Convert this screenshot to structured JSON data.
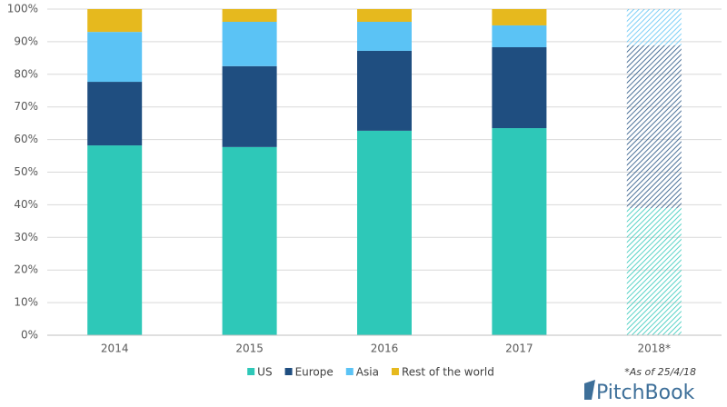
{
  "chart_data": {
    "type": "stacked_bar",
    "categories": [
      "2014",
      "2015",
      "2016",
      "2017",
      "2018*"
    ],
    "series": [
      {
        "name": "US",
        "color": "#2ec8b8",
        "values": [
          58.2,
          57.7,
          62.7,
          63.5,
          39.0
        ]
      },
      {
        "name": "Europe",
        "color": "#1f4e80",
        "values": [
          19.5,
          24.8,
          24.5,
          24.8,
          49.9
        ]
      },
      {
        "name": "Asia",
        "color": "#5bc3f5",
        "values": [
          15.3,
          13.6,
          8.9,
          6.7,
          11.1
        ]
      },
      {
        "name": "Rest of the world",
        "color": "#e6b91e",
        "values": [
          7.0,
          3.9,
          3.9,
          5.0,
          0
        ]
      }
    ],
    "hatched": [
      false,
      false,
      false,
      false,
      true
    ],
    "ylim": [
      0,
      100
    ],
    "yticks": [
      {
        "value": 0,
        "label": "0%"
      },
      {
        "value": 10,
        "label": "10%"
      },
      {
        "value": 20,
        "label": "20%"
      },
      {
        "value": 30,
        "label": "30%"
      },
      {
        "value": 40,
        "label": "40%"
      },
      {
        "value": 50,
        "label": "50%"
      },
      {
        "value": 60,
        "label": "60%"
      },
      {
        "value": 70,
        "label": "70%"
      },
      {
        "value": 80,
        "label": "80%"
      },
      {
        "value": 90,
        "label": "90%"
      },
      {
        "value": 100,
        "label": "100%"
      }
    ],
    "grid": true,
    "legend": "bottom",
    "annotation": "*As of 25/4/18",
    "logo": "PitchBook"
  }
}
